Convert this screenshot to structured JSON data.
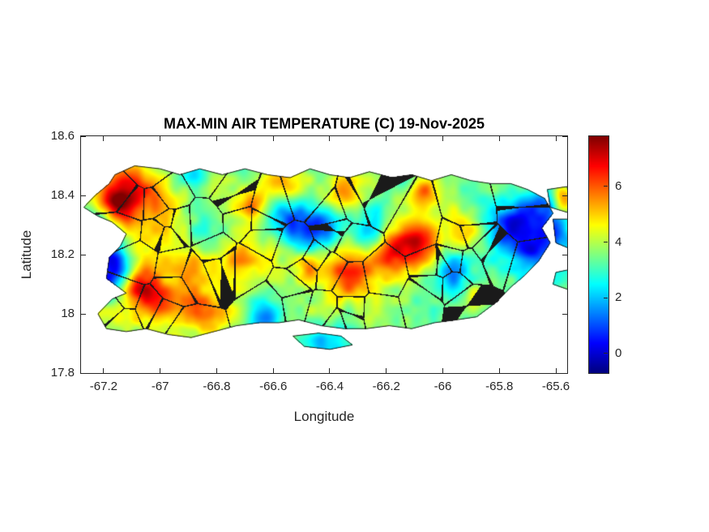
{
  "colors": {
    "background": "#ffffff",
    "axis_text": "#262626",
    "title_text": "#000000",
    "boundary_line": "#1a1a1a"
  },
  "chart_data": {
    "type": "heatmap",
    "title": "MAX-MIN AIR TEMPERATURE (C) 19-Nov-2025",
    "xlabel": "Longitude",
    "ylabel": "Latitude",
    "region": "Puerto Rico with municipal boundaries",
    "units": "degrees C (daily max minus min air temperature)",
    "colormap": "jet",
    "grid": false,
    "legend": false,
    "xlim": [
      -67.28,
      -65.56
    ],
    "ylim": [
      17.8,
      18.6
    ],
    "x_ticks": [
      -67.2,
      -67,
      -66.8,
      -66.6,
      -66.4,
      -66.2,
      -66,
      -65.8,
      -65.6
    ],
    "x_tick_labels": [
      "-67.2",
      "-67",
      "-66.8",
      "-66.6",
      "-66.4",
      "-66.2",
      "-66",
      "-65.8",
      "-65.6"
    ],
    "y_ticks": [
      17.8,
      18,
      18.2,
      18.4,
      18.6
    ],
    "y_tick_labels": [
      "17.8",
      "18",
      "18.2",
      "18.4",
      "18.6"
    ],
    "colorbar": {
      "min": -0.7,
      "max": 7.8,
      "ticks": [
        0,
        2,
        4,
        6
      ],
      "tick_labels": [
        "0",
        "2",
        "4",
        "6"
      ]
    },
    "base_value": 3.6,
    "boundary_seed": 7,
    "municipality_count": 72,
    "texture_noise": {
      "octave1": {
        "scale": 0.09,
        "amp": 1.2
      },
      "octave2": {
        "scale": 0.034,
        "amp": 0.8
      }
    },
    "anomalies": [
      {
        "lon": -67.08,
        "lat": 18.4,
        "amp": 3.2,
        "sigma": 0.07
      },
      {
        "lon": -67.16,
        "lat": 18.37,
        "amp": 2.4,
        "sigma": 0.04
      },
      {
        "lon": -66.68,
        "lat": 18.37,
        "amp": 2.2,
        "sigma": 0.04
      },
      {
        "lon": -66.55,
        "lat": 18.43,
        "amp": 1.8,
        "sigma": 0.05
      },
      {
        "lon": -66.35,
        "lat": 18.41,
        "amp": 2.0,
        "sigma": 0.045
      },
      {
        "lon": -66.07,
        "lat": 18.4,
        "amp": 2.4,
        "sigma": 0.045
      },
      {
        "lon": -66.08,
        "lat": 18.24,
        "amp": 3.0,
        "sigma": 0.06
      },
      {
        "lon": -66.18,
        "lat": 18.2,
        "amp": 2.2,
        "sigma": 0.05
      },
      {
        "lon": -65.93,
        "lat": 18.28,
        "amp": 2.0,
        "sigma": 0.045
      },
      {
        "lon": -66.33,
        "lat": 18.14,
        "amp": 3.0,
        "sigma": 0.065
      },
      {
        "lon": -66.48,
        "lat": 18.16,
        "amp": 2.0,
        "sigma": 0.04
      },
      {
        "lon": -67.08,
        "lat": 18.09,
        "amp": 2.8,
        "sigma": 0.05
      },
      {
        "lon": -66.98,
        "lat": 18.04,
        "amp": 2.2,
        "sigma": 0.045
      },
      {
        "lon": -66.85,
        "lat": 18.0,
        "amp": 1.6,
        "sigma": 0.045
      },
      {
        "lon": -66.72,
        "lat": 18.18,
        "amp": 1.5,
        "sigma": 0.05
      },
      {
        "lon": -65.88,
        "lat": 18.06,
        "amp": 1.5,
        "sigma": 0.04
      },
      {
        "lon": -65.57,
        "lat": 18.39,
        "amp": 2.4,
        "sigma": 0.03
      },
      {
        "lon": -66.9,
        "lat": 18.12,
        "amp": 0.9,
        "sigma": 0.05
      },
      {
        "lon": -67.17,
        "lat": 18.13,
        "amp": -3.4,
        "sigma": 0.055
      },
      {
        "lon": -67.2,
        "lat": 18.22,
        "amp": -2.8,
        "sigma": 0.045
      },
      {
        "lon": -67.22,
        "lat": 18.31,
        "amp": -1.8,
        "sigma": 0.035
      },
      {
        "lon": -66.45,
        "lat": 18.29,
        "amp": -2.8,
        "sigma": 0.06
      },
      {
        "lon": -66.27,
        "lat": 18.27,
        "amp": -2.0,
        "sigma": 0.045
      },
      {
        "lon": -66.55,
        "lat": 18.33,
        "amp": -1.8,
        "sigma": 0.045
      },
      {
        "lon": -65.76,
        "lat": 18.3,
        "amp": -2.6,
        "sigma": 0.055
      },
      {
        "lon": -65.64,
        "lat": 18.36,
        "amp": -2.2,
        "sigma": 0.04
      },
      {
        "lon": -65.68,
        "lat": 18.21,
        "amp": -2.0,
        "sigma": 0.045
      },
      {
        "lon": -66.63,
        "lat": 17.99,
        "amp": -3.0,
        "sigma": 0.045
      },
      {
        "lon": -66.88,
        "lat": 18.47,
        "amp": -1.6,
        "sigma": 0.035
      },
      {
        "lon": -66.13,
        "lat": 18.45,
        "amp": -1.4,
        "sigma": 0.035
      },
      {
        "lon": -65.97,
        "lat": 18.14,
        "amp": -1.4,
        "sigma": 0.045
      },
      {
        "lon": -65.6,
        "lat": 18.27,
        "amp": -1.8,
        "sigma": 0.04
      },
      {
        "lon": -66.42,
        "lat": 17.91,
        "amp": -1.2,
        "sigma": 0.05
      },
      {
        "lon": -66.8,
        "lat": 18.28,
        "amp": -1.0,
        "sigma": 0.06
      },
      {
        "lon": -66.95,
        "lat": 18.15,
        "amp": 0.7,
        "sigma": 0.22
      },
      {
        "lon": -65.8,
        "lat": 18.25,
        "amp": -0.7,
        "sigma": 0.18
      }
    ],
    "islands": {
      "main": [
        [
          -67.16,
          18.47
        ],
        [
          -67.09,
          18.5
        ],
        [
          -67.0,
          18.49
        ],
        [
          -66.93,
          18.47
        ],
        [
          -66.86,
          18.49
        ],
        [
          -66.78,
          18.47
        ],
        [
          -66.7,
          18.49
        ],
        [
          -66.62,
          18.47
        ],
        [
          -66.54,
          18.46
        ],
        [
          -66.47,
          18.49
        ],
        [
          -66.4,
          18.47
        ],
        [
          -66.33,
          18.46
        ],
        [
          -66.26,
          18.48
        ],
        [
          -66.18,
          18.46
        ],
        [
          -66.11,
          18.47
        ],
        [
          -66.04,
          18.45
        ],
        [
          -65.97,
          18.47
        ],
        [
          -65.9,
          18.45
        ],
        [
          -65.83,
          18.44
        ],
        [
          -65.76,
          18.44
        ],
        [
          -65.7,
          18.42
        ],
        [
          -65.64,
          18.39
        ],
        [
          -65.61,
          18.34
        ],
        [
          -65.65,
          18.29
        ],
        [
          -65.62,
          18.24
        ],
        [
          -65.66,
          18.18
        ],
        [
          -65.71,
          18.13
        ],
        [
          -65.76,
          18.09
        ],
        [
          -65.81,
          18.04
        ],
        [
          -65.88,
          17.99
        ],
        [
          -65.95,
          17.98
        ],
        [
          -66.03,
          17.97
        ],
        [
          -66.11,
          17.95
        ],
        [
          -66.19,
          17.96
        ],
        [
          -66.27,
          17.95
        ],
        [
          -66.35,
          17.95
        ],
        [
          -66.43,
          17.96
        ],
        [
          -66.51,
          17.98
        ],
        [
          -66.58,
          17.97
        ],
        [
          -66.65,
          17.97
        ],
        [
          -66.73,
          17.96
        ],
        [
          -66.81,
          17.94
        ],
        [
          -66.89,
          17.92
        ],
        [
          -66.97,
          17.93
        ],
        [
          -67.05,
          17.95
        ],
        [
          -67.12,
          17.94
        ],
        [
          -67.19,
          17.95
        ],
        [
          -67.22,
          18.0
        ],
        [
          -67.17,
          18.05
        ],
        [
          -67.12,
          18.07
        ],
        [
          -67.19,
          18.12
        ],
        [
          -67.18,
          18.19
        ],
        [
          -67.14,
          18.23
        ],
        [
          -67.12,
          18.27
        ],
        [
          -67.17,
          18.31
        ],
        [
          -67.22,
          18.33
        ],
        [
          -67.27,
          18.36
        ],
        [
          -67.23,
          18.4
        ],
        [
          -67.18,
          18.44
        ]
      ],
      "islets": {
        "culebra_north": [
          [
            -65.63,
            18.42
          ],
          [
            -65.56,
            18.43
          ],
          [
            -65.55,
            18.34
          ],
          [
            -65.62,
            18.36
          ]
        ],
        "culebra_south": [
          [
            -65.61,
            18.32
          ],
          [
            -65.55,
            18.32
          ],
          [
            -65.55,
            18.22
          ],
          [
            -65.6,
            18.24
          ]
        ],
        "vieques_edge": [
          [
            -65.6,
            18.14
          ],
          [
            -65.55,
            18.15
          ],
          [
            -65.55,
            18.08
          ],
          [
            -65.61,
            18.1
          ]
        ],
        "caja_de_muertos": [
          [
            -66.53,
            17.925
          ],
          [
            -66.44,
            17.935
          ],
          [
            -66.36,
            17.925
          ],
          [
            -66.32,
            17.895
          ],
          [
            -66.4,
            17.88
          ],
          [
            -66.49,
            17.89
          ]
        ]
      }
    }
  }
}
